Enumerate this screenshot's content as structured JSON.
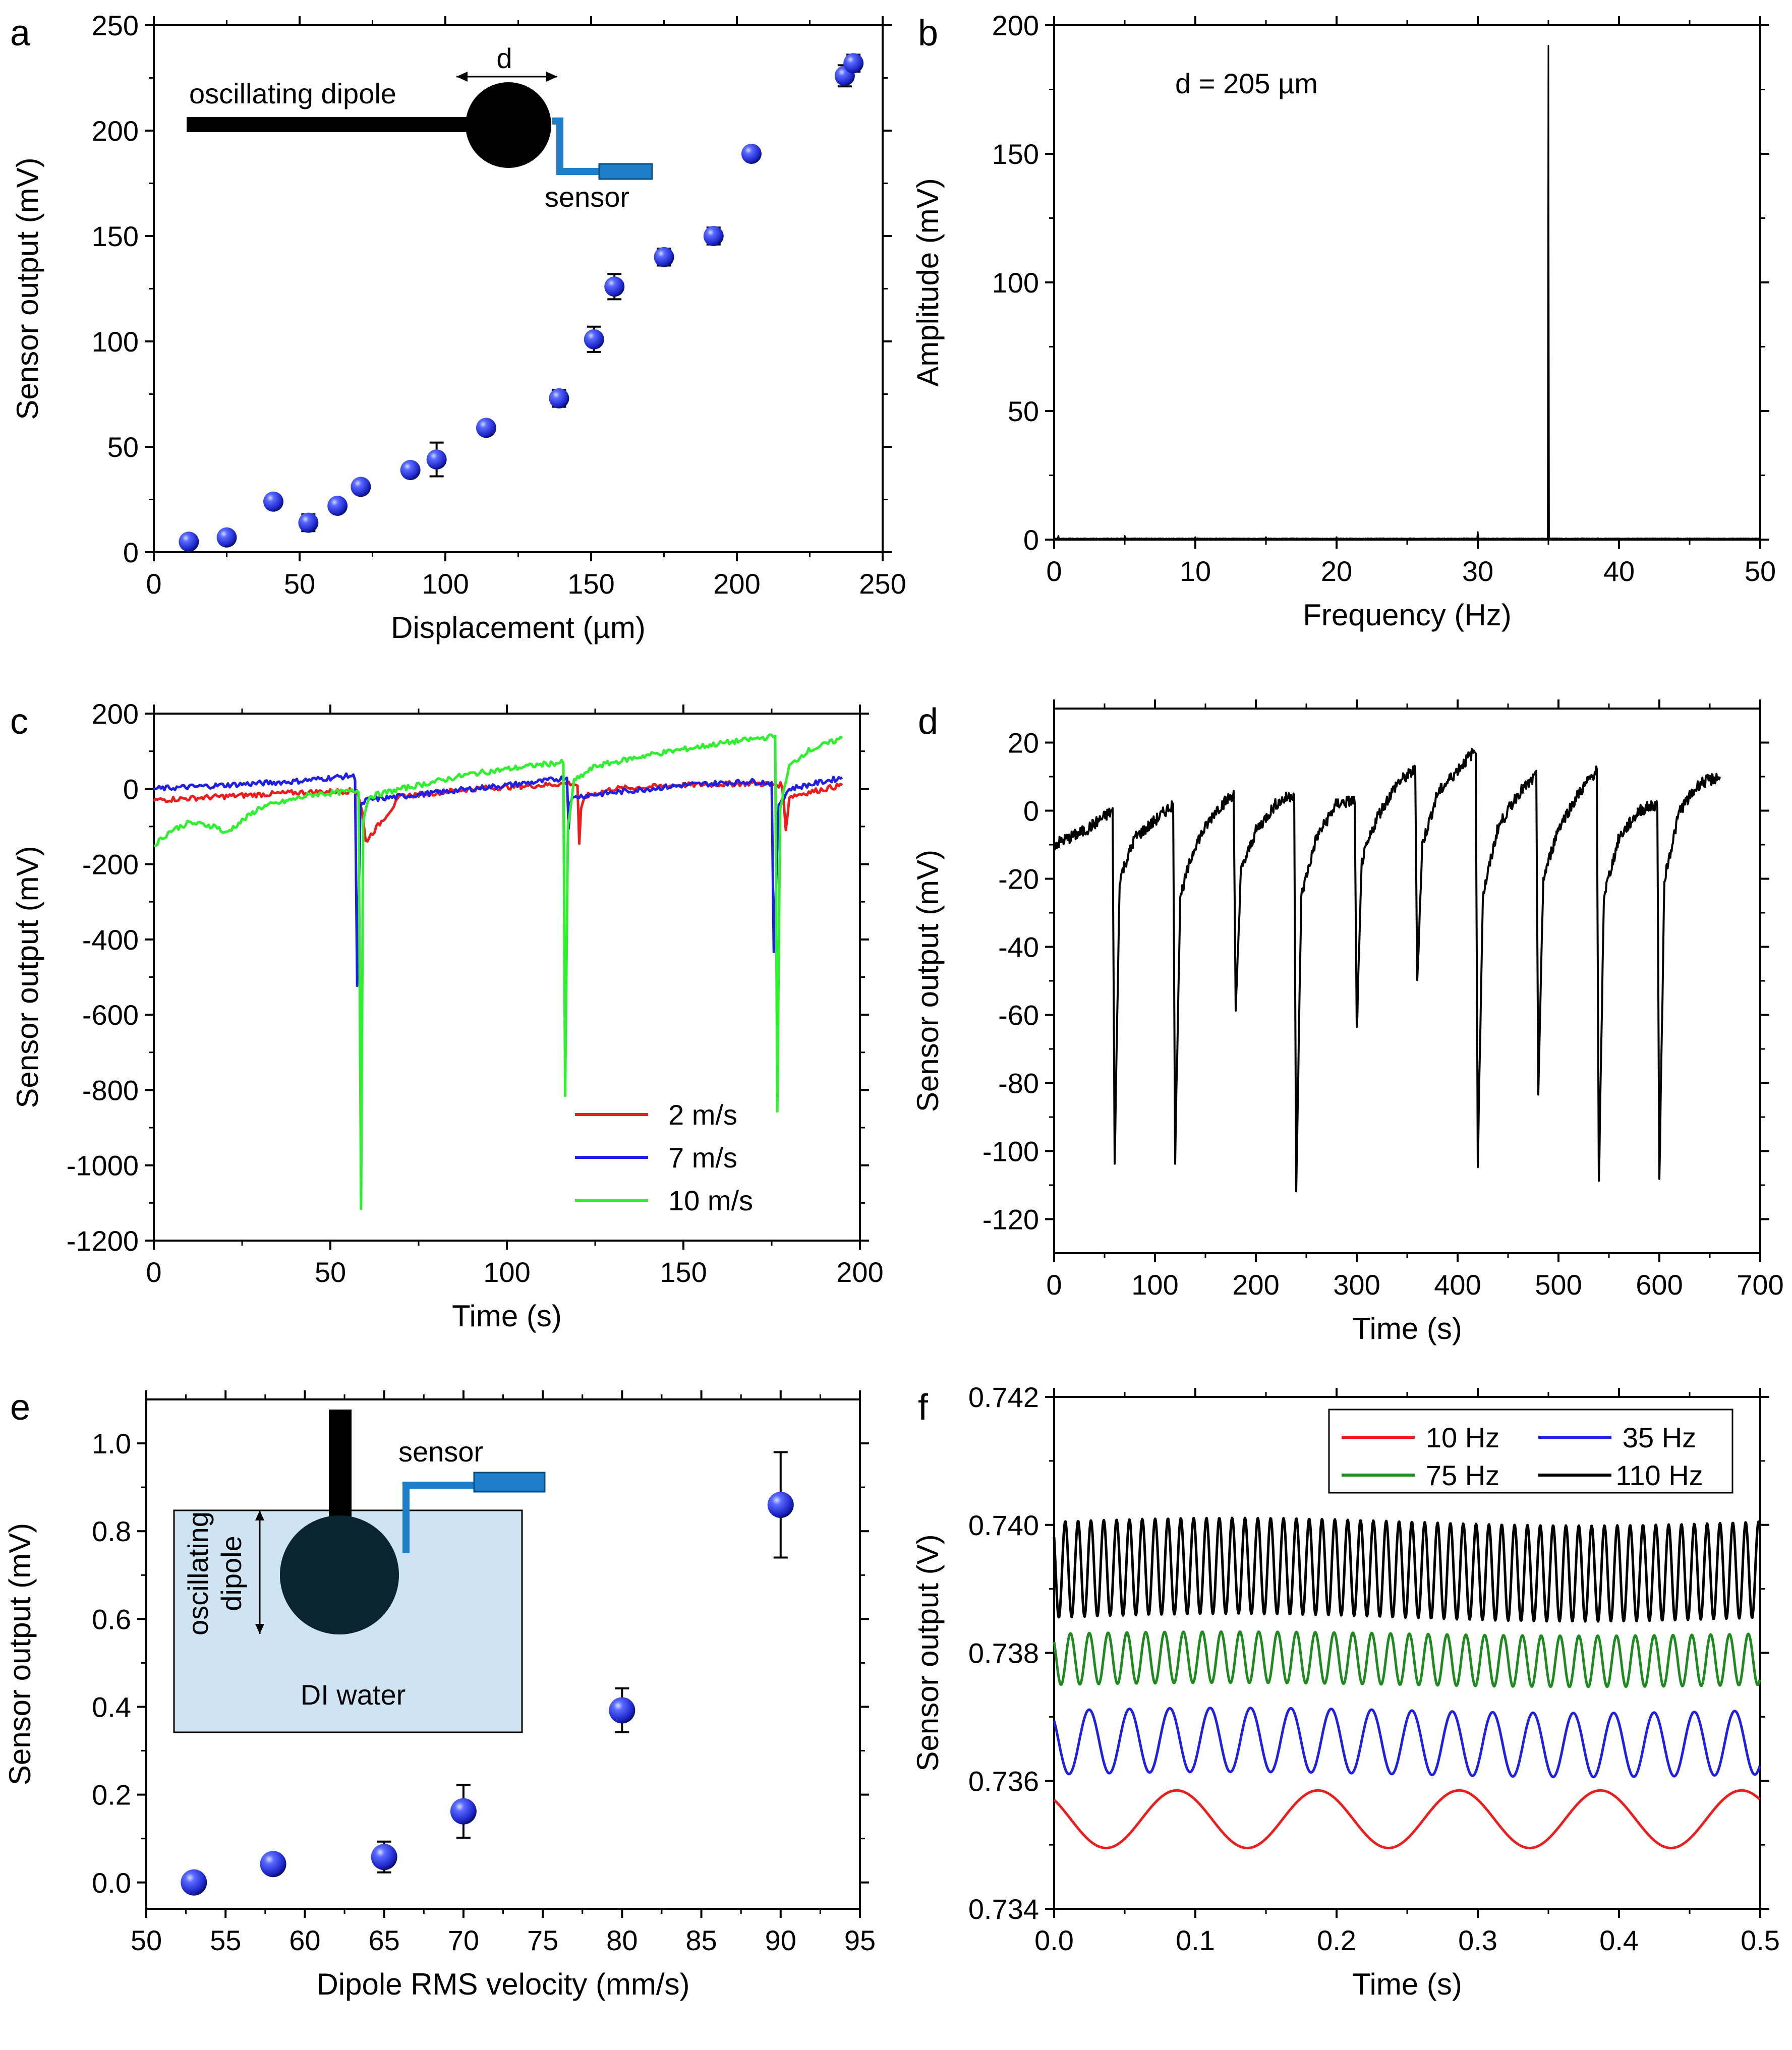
{
  "colors": {
    "red": "#ee1c1c",
    "blue": "#1f1fe6",
    "green": "#2ef02e",
    "darkgreen": "#1f8a1f",
    "black": "#000000",
    "sensor_blue": "#1e7fc8",
    "water": "#cfe4f2",
    "point_blue": "#2a35ee"
  },
  "chart_data": [
    {
      "id": "a",
      "panel_label": "a",
      "type": "scatter",
      "xlabel": "Displacement (µm)",
      "ylabel": "Sensor output (mV)",
      "xlim": [
        0,
        250
      ],
      "ylim": [
        0,
        250
      ],
      "xticks": [
        "0",
        "50",
        "100",
        "150",
        "200",
        "250"
      ],
      "yticks": [
        "0",
        "50",
        "100",
        "150",
        "200",
        "250"
      ],
      "inset_labels": {
        "d": "d",
        "dipole": "oscillating dipole",
        "sensor": "sensor"
      },
      "series": [
        {
          "name": "sensor output",
          "x": [
            12,
            25,
            41,
            53,
            63,
            71,
            88,
            97,
            114,
            139,
            151,
            158,
            175,
            192,
            205,
            237,
            240
          ],
          "y": [
            5,
            7,
            24,
            14,
            22,
            31,
            39,
            44,
            59,
            73,
            101,
            126,
            140,
            150,
            189,
            226,
            232
          ],
          "err": [
            2,
            2,
            3,
            4,
            3,
            3,
            3,
            8,
            3,
            4,
            6,
            6,
            4,
            4,
            3,
            5,
            4
          ]
        }
      ]
    },
    {
      "id": "b",
      "panel_label": "b",
      "type": "line",
      "xlabel": "Frequency (Hz)",
      "ylabel": "Amplitude (mV)",
      "xlim": [
        0,
        50
      ],
      "ylim": [
        0,
        200
      ],
      "xticks": [
        "0",
        "10",
        "20",
        "30",
        "40",
        "50"
      ],
      "yticks": [
        "0",
        "50",
        "100",
        "150",
        "200"
      ],
      "annotation": "d = 205 µm",
      "peaks": [
        {
          "f": 35,
          "amp": 192
        },
        {
          "f": 30,
          "amp": 3
        },
        {
          "f": 5,
          "amp": 1.5
        },
        {
          "f": 10,
          "amp": 1
        },
        {
          "f": 15,
          "amp": 1
        },
        {
          "f": 20,
          "amp": 1
        },
        {
          "f": 0.3,
          "amp": 1.5
        }
      ]
    },
    {
      "id": "c",
      "panel_label": "c",
      "type": "line",
      "xlabel": "Time (s)",
      "ylabel": "Sensor output (mV)",
      "xlim": [
        0,
        200
      ],
      "ylim": [
        -1200,
        200
      ],
      "xticks": [
        "0",
        "50",
        "100",
        "150",
        "200"
      ],
      "yticks": [
        "-1200",
        "-1000",
        "-800",
        "-600",
        "-400",
        "-200",
        "0",
        "200"
      ],
      "legend": [
        "2 m/s",
        "7 m/s",
        "10 m/s"
      ],
      "series": [
        {
          "name": "2 m/s",
          "color": "red",
          "x": [
            0,
            20,
            40,
            57,
            57.5,
            59,
            60,
            70,
            90,
            110,
            118,
            120,
            120.5,
            121,
            122,
            130,
            150,
            170,
            178,
            179,
            180,
            190,
            195
          ],
          "y": [
            -30,
            -20,
            -10,
            -5,
            0,
            -60,
            -140,
            -20,
            0,
            10,
            15,
            10,
            -150,
            -60,
            -20,
            0,
            10,
            15,
            10,
            -110,
            -20,
            0,
            10
          ]
        },
        {
          "name": "7 m/s",
          "color": "blue",
          "x": [
            0,
            20,
            40,
            56,
            57,
            57.6,
            58.5,
            60,
            70,
            90,
            110,
            117,
            117.5,
            118,
            120,
            130,
            150,
            170,
            175,
            175.6,
            177,
            180,
            190,
            195
          ],
          "y": [
            0,
            10,
            20,
            35,
            30,
            -520,
            -50,
            -30,
            -20,
            0,
            20,
            30,
            -100,
            -30,
            -20,
            -10,
            10,
            20,
            15,
            -440,
            -40,
            0,
            20,
            30
          ]
        },
        {
          "name": "10 m/s",
          "color": "green",
          "x": [
            0,
            5,
            10,
            18,
            20,
            30,
            45,
            58,
            58.7,
            59.3,
            61,
            70,
            90,
            110,
            116,
            116.5,
            117.3,
            119,
            125,
            140,
            160,
            176,
            176.6,
            177.4,
            180,
            185,
            195
          ],
          "y": [
            -150,
            -110,
            -90,
            -100,
            -120,
            -50,
            -15,
            -5,
            -1110,
            -80,
            -20,
            0,
            40,
            65,
            70,
            -820,
            -100,
            20,
            60,
            90,
            120,
            140,
            -850,
            -50,
            60,
            100,
            135
          ]
        }
      ]
    },
    {
      "id": "d",
      "panel_label": "d",
      "type": "line",
      "xlabel": "Time (s)",
      "ylabel": "Sensor output (mV)",
      "xlim": [
        0,
        700
      ],
      "ylim": [
        -130,
        30
      ],
      "xticks": [
        "0",
        "100",
        "200",
        "300",
        "400",
        "500",
        "600",
        "700"
      ],
      "yticks": [
        "-120",
        "-100",
        "-80",
        "-60",
        "-40",
        "-20",
        "0",
        "20"
      ],
      "series": [
        {
          "name": "sensor output",
          "color": "black",
          "x": [
            0,
            30,
            58,
            60,
            65,
            80,
            100,
            118,
            120,
            125,
            140,
            160,
            178,
            180,
            185,
            200,
            220,
            238,
            240,
            245,
            260,
            280,
            298,
            300,
            305,
            320,
            340,
            358,
            360,
            365,
            380,
            400,
            418,
            420,
            425,
            440,
            460,
            478,
            480,
            485,
            500,
            520,
            538,
            540,
            545,
            560,
            580,
            598,
            600,
            605,
            620,
            640,
            660
          ],
          "y": [
            -10,
            -6,
            0,
            -103,
            -20,
            -8,
            -3,
            2,
            -102,
            -25,
            -10,
            0,
            5,
            -60,
            -18,
            -6,
            2,
            5,
            -113,
            -25,
            -8,
            2,
            3,
            -65,
            -15,
            -2,
            8,
            12,
            -50,
            -10,
            5,
            12,
            18,
            -103,
            -25,
            -5,
            5,
            10,
            -82,
            -20,
            -5,
            5,
            12,
            -110,
            -25,
            -8,
            0,
            2,
            -109,
            -20,
            0,
            8,
            10
          ]
        }
      ]
    },
    {
      "id": "e",
      "panel_label": "e",
      "type": "scatter",
      "xlabel": "Dipole RMS velocity (mm/s)",
      "ylabel": "Sensor output (mV)",
      "xlim": [
        50,
        95
      ],
      "ylim": [
        -0.06,
        1.1
      ],
      "xticks": [
        "50",
        "55",
        "60",
        "65",
        "70",
        "75",
        "80",
        "85",
        "90",
        "95"
      ],
      "yticks": [
        "0.0",
        "0.2",
        "0.4",
        "0.6",
        "0.8",
        "1.0"
      ],
      "inset_labels": {
        "sensor": "sensor",
        "dipole_line1": "oscillating",
        "dipole_line2": "dipole",
        "water": "DI water"
      },
      "series": [
        {
          "name": "sensor output",
          "x": [
            53,
            58,
            65,
            70,
            80,
            90
          ],
          "y": [
            0.0,
            0.042,
            0.058,
            0.162,
            0.392,
            0.86
          ],
          "err": [
            0.01,
            0.015,
            0.035,
            0.06,
            0.05,
            0.12
          ]
        }
      ]
    },
    {
      "id": "f",
      "panel_label": "f",
      "type": "line",
      "xlabel": "Time (s)",
      "ylabel": "Sensor output (V)",
      "xlim": [
        0.0,
        0.5
      ],
      "ylim": [
        0.734,
        0.742
      ],
      "xticks": [
        "0.0",
        "0.1",
        "0.2",
        "0.3",
        "0.4",
        "0.5"
      ],
      "yticks": [
        "0.734",
        "0.736",
        "0.738",
        "0.740",
        "0.742"
      ],
      "legend": [
        "10 Hz",
        "35 Hz",
        "75 Hz",
        "110 Hz"
      ],
      "series": [
        {
          "name": "10 Hz",
          "color": "red",
          "freq": 10,
          "offset": 0.7354,
          "amp": 0.00045
        },
        {
          "name": "35 Hz",
          "color": "blue",
          "freq": 35,
          "offset": 0.7366,
          "amp": 0.0005
        },
        {
          "name": "75 Hz",
          "color": "darkgreen",
          "freq": 75,
          "offset": 0.7379,
          "amp": 0.0004
        },
        {
          "name": "110 Hz",
          "color": "black",
          "freq": 110,
          "offset": 0.7393,
          "amp": 0.00075
        }
      ]
    }
  ]
}
